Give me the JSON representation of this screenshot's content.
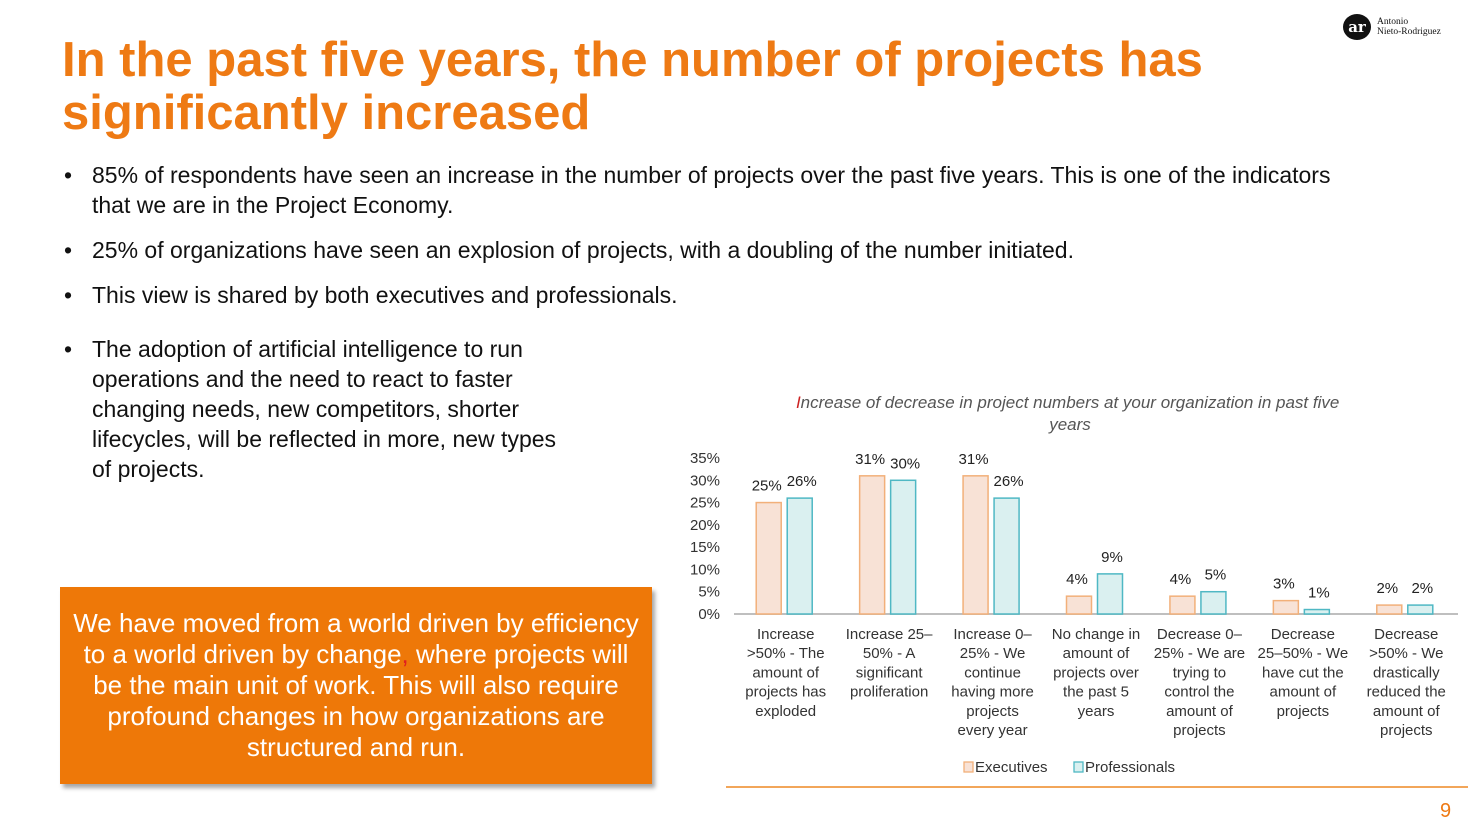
{
  "slide": {
    "title": "In the past five years, the number of projects has significantly increased",
    "logo": {
      "initials": "ar",
      "name_line1": "Antonio",
      "name_line2": "Nieto-Rodriguez"
    },
    "bullets": [
      "85% of respondents have seen an increase in the number of projects over the past five years. This is one of the indicators that we are in the Project Economy.",
      "25% of organizations have seen an explosion of projects, with a doubling of the number initiated.",
      "This view is shared by both executives and professionals."
    ],
    "bullet4": "The adoption of artificial intelligence to run operations and the need to react to faster changing needs, new competitors, shorter lifecycles, will be reflected in more, new types of projects.",
    "callout": {
      "part1": "We have moved from a world driven by efficiency to a world driven by change",
      "mark": ",",
      "part2": " where projects will be the main unit of work. This will also require profound changes in how organizations are structured and run."
    },
    "page_number": "9",
    "colors": {
      "accent": "#ee7a14",
      "callout_bg": "#ee7808",
      "exec_fill": "#f8e2d6",
      "exec_stroke": "#f2b07a",
      "prof_fill": "#daf0f0",
      "prof_stroke": "#4fb8c4"
    }
  },
  "chart_data": {
    "type": "bar",
    "title_first_letter": "I",
    "title_rest": "ncrease of decrease in project numbers at your organization in past five years",
    "categories": [
      "Increase >50% - The amount of projects has exploded",
      "Increase 25–50% - A significant proliferation",
      "Increase 0–25% - We continue having more projects every year",
      "No change in amount of projects over the past 5 years",
      "Decrease 0–25% - We are trying to control the amount of projects",
      "Decrease 25–50% - We have cut the amount of projects",
      "Decrease >50% - We drastically reduced the amount of projects"
    ],
    "category_lines": [
      [
        "Increase",
        ">50% - The",
        "amount of",
        "projects has",
        "exploded"
      ],
      [
        "Increase 25–",
        "50% - A",
        "significant",
        "proliferation"
      ],
      [
        "Increase 0–",
        "25% - We",
        "continue",
        "having more",
        "projects",
        "every year"
      ],
      [
        "No change in",
        "amount of",
        "projects over",
        "the past 5",
        "years"
      ],
      [
        "Decrease 0–",
        "25% - We are",
        "trying to",
        "control the",
        "amount of",
        "projects"
      ],
      [
        "Decrease",
        "25–50% - We",
        "have cut the",
        "amount of",
        "projects"
      ],
      [
        "Decrease",
        ">50% - We",
        "drastically",
        "reduced the",
        "amount of",
        "projects"
      ]
    ],
    "series": [
      {
        "name": "Executives",
        "values": [
          25,
          31,
          31,
          4,
          4,
          3,
          2
        ]
      },
      {
        "name": "Professionals",
        "values": [
          26,
          30,
          26,
          9,
          5,
          1,
          2
        ]
      }
    ],
    "yticks": [
      "0%",
      "5%",
      "10%",
      "15%",
      "20%",
      "25%",
      "30%",
      "35%"
    ],
    "ylim": [
      0,
      35
    ],
    "legend_position": "bottom",
    "grid": false
  }
}
